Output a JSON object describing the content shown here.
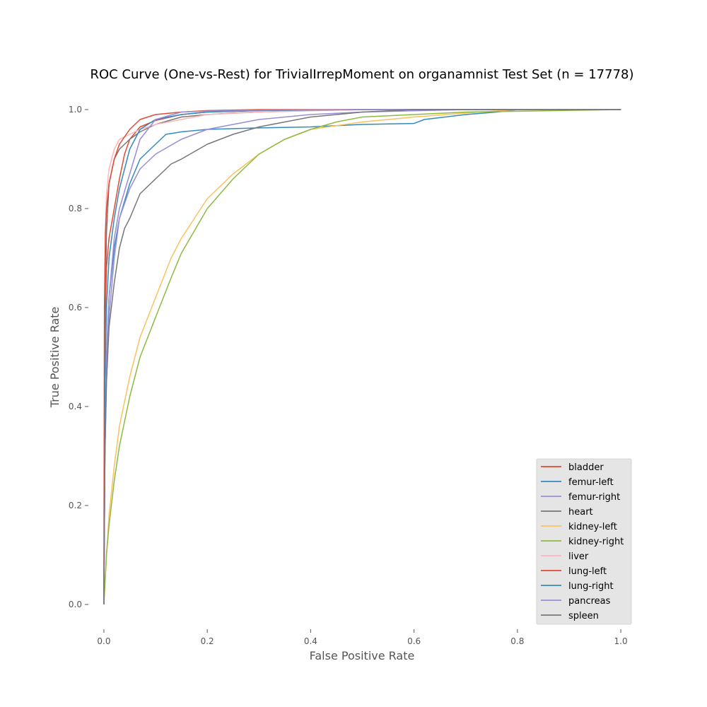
{
  "chart_data": {
    "type": "line",
    "title": "ROC Curve (One-vs-Rest) for TrivialIrrepMoment on organamnist Test Set (n = 17778)",
    "xlabel": "False Positive Rate",
    "ylabel": "True Positive Rate",
    "xlim": [
      -0.03,
      1.03
    ],
    "ylim": [
      -0.05,
      1.05
    ],
    "xticks": [
      0.0,
      0.2,
      0.4,
      0.6,
      0.8,
      1.0
    ],
    "yticks": [
      0.0,
      0.2,
      0.4,
      0.6,
      0.8,
      1.0
    ],
    "xtick_labels": [
      "0.0",
      "0.2",
      "0.4",
      "0.6",
      "0.8",
      "1.0"
    ],
    "ytick_labels": [
      "0.0",
      "0.2",
      "0.4",
      "0.6",
      "0.8",
      "1.0"
    ],
    "grid": false,
    "legend_position": "lower-right",
    "series": [
      {
        "name": "bladder",
        "color": "#E24A33",
        "x": [
          0,
          0.002,
          0.005,
          0.01,
          0.02,
          0.03,
          0.04,
          0.05,
          0.07,
          0.1,
          0.15,
          0.2,
          0.3,
          0.5,
          0.8,
          1.0
        ],
        "y": [
          0,
          0.55,
          0.68,
          0.74,
          0.8,
          0.86,
          0.91,
          0.94,
          0.965,
          0.978,
          0.99,
          0.995,
          0.998,
          1.0,
          1.0,
          1.0
        ]
      },
      {
        "name": "femur-left",
        "color": "#348ABD",
        "x": [
          0,
          0.002,
          0.005,
          0.01,
          0.02,
          0.03,
          0.05,
          0.07,
          0.1,
          0.12,
          0.15,
          0.2,
          0.3,
          0.4,
          0.5,
          0.6,
          0.62,
          0.7,
          0.76,
          0.8,
          1.0
        ],
        "y": [
          0,
          0.3,
          0.5,
          0.62,
          0.72,
          0.78,
          0.85,
          0.9,
          0.93,
          0.95,
          0.955,
          0.96,
          0.963,
          0.965,
          0.97,
          0.972,
          0.98,
          0.99,
          0.995,
          1.0,
          1.0
        ]
      },
      {
        "name": "femur-right",
        "color": "#988ED5",
        "x": [
          0,
          0.002,
          0.005,
          0.01,
          0.02,
          0.03,
          0.05,
          0.07,
          0.1,
          0.15,
          0.2,
          0.25,
          0.3,
          0.4,
          0.5,
          0.7,
          1.0
        ],
        "y": [
          0,
          0.3,
          0.45,
          0.58,
          0.7,
          0.78,
          0.84,
          0.88,
          0.91,
          0.94,
          0.96,
          0.97,
          0.98,
          0.99,
          0.995,
          1.0,
          1.0
        ]
      },
      {
        "name": "heart",
        "color": "#777777",
        "x": [
          0,
          0.002,
          0.005,
          0.01,
          0.02,
          0.03,
          0.05,
          0.07,
          0.1,
          0.15,
          0.2,
          0.25,
          0.3,
          0.4,
          0.5,
          0.7,
          1.0
        ],
        "y": [
          0,
          0.55,
          0.75,
          0.85,
          0.9,
          0.92,
          0.94,
          0.955,
          0.97,
          0.985,
          0.99,
          0.993,
          0.995,
          0.998,
          1.0,
          1.0,
          1.0
        ]
      },
      {
        "name": "kidney-left",
        "color": "#FBC15E",
        "x": [
          0,
          0.005,
          0.01,
          0.02,
          0.03,
          0.05,
          0.07,
          0.1,
          0.13,
          0.15,
          0.2,
          0.25,
          0.3,
          0.35,
          0.4,
          0.5,
          0.6,
          0.7,
          0.8,
          1.0
        ],
        "y": [
          0,
          0.1,
          0.18,
          0.28,
          0.36,
          0.46,
          0.54,
          0.62,
          0.7,
          0.74,
          0.82,
          0.87,
          0.91,
          0.94,
          0.96,
          0.975,
          0.985,
          0.993,
          1.0,
          1.0
        ]
      },
      {
        "name": "kidney-right",
        "color": "#8EBA42",
        "x": [
          0,
          0.005,
          0.01,
          0.02,
          0.03,
          0.05,
          0.07,
          0.1,
          0.13,
          0.15,
          0.2,
          0.25,
          0.3,
          0.35,
          0.4,
          0.45,
          0.5,
          0.6,
          0.7,
          1.0
        ],
        "y": [
          0,
          0.1,
          0.16,
          0.25,
          0.32,
          0.42,
          0.5,
          0.58,
          0.66,
          0.71,
          0.8,
          0.86,
          0.91,
          0.94,
          0.96,
          0.975,
          0.985,
          0.99,
          0.995,
          1.0
        ]
      },
      {
        "name": "liver",
        "color": "#FFB5B8",
        "x": [
          0,
          0.001,
          0.003,
          0.005,
          0.01,
          0.02,
          0.03,
          0.05,
          0.07,
          0.1,
          0.15,
          0.2,
          0.3,
          0.5,
          0.8,
          1.0
        ],
        "y": [
          0,
          0.6,
          0.76,
          0.83,
          0.88,
          0.92,
          0.94,
          0.95,
          0.96,
          0.97,
          0.98,
          0.99,
          0.995,
          1.0,
          1.0,
          1.0
        ]
      },
      {
        "name": "lung-left",
        "color": "#E24A33",
        "x": [
          0,
          0.001,
          0.003,
          0.005,
          0.01,
          0.02,
          0.03,
          0.05,
          0.07,
          0.1,
          0.15,
          0.2,
          0.3,
          0.5,
          1.0
        ],
        "y": [
          0,
          0.6,
          0.75,
          0.8,
          0.85,
          0.9,
          0.93,
          0.96,
          0.98,
          0.99,
          0.995,
          0.998,
          1.0,
          1.0,
          1.0
        ]
      },
      {
        "name": "lung-right",
        "color": "#348ABD",
        "x": [
          0,
          0.002,
          0.005,
          0.01,
          0.02,
          0.03,
          0.04,
          0.05,
          0.07,
          0.1,
          0.15,
          0.2,
          0.3,
          0.5,
          1.0
        ],
        "y": [
          0,
          0.45,
          0.6,
          0.7,
          0.78,
          0.84,
          0.88,
          0.92,
          0.96,
          0.98,
          0.99,
          0.995,
          0.998,
          1.0,
          1.0
        ]
      },
      {
        "name": "pancreas",
        "color": "#988ED5",
        "x": [
          0,
          0.002,
          0.005,
          0.01,
          0.02,
          0.03,
          0.05,
          0.07,
          0.1,
          0.15,
          0.2,
          0.3,
          0.5,
          1.0
        ],
        "y": [
          0,
          0.3,
          0.5,
          0.62,
          0.74,
          0.8,
          0.87,
          0.94,
          0.98,
          0.995,
          0.997,
          0.999,
          1.0,
          1.0
        ]
      },
      {
        "name": "spleen",
        "color": "#777777",
        "x": [
          0,
          0.002,
          0.005,
          0.01,
          0.02,
          0.03,
          0.04,
          0.05,
          0.07,
          0.1,
          0.13,
          0.15,
          0.2,
          0.25,
          0.3,
          0.35,
          0.4,
          0.5,
          0.6,
          0.7,
          1.0
        ],
        "y": [
          0,
          0.3,
          0.45,
          0.56,
          0.65,
          0.72,
          0.76,
          0.78,
          0.83,
          0.86,
          0.89,
          0.9,
          0.93,
          0.95,
          0.965,
          0.975,
          0.985,
          0.995,
          1.0,
          1.0,
          1.0
        ]
      }
    ]
  }
}
